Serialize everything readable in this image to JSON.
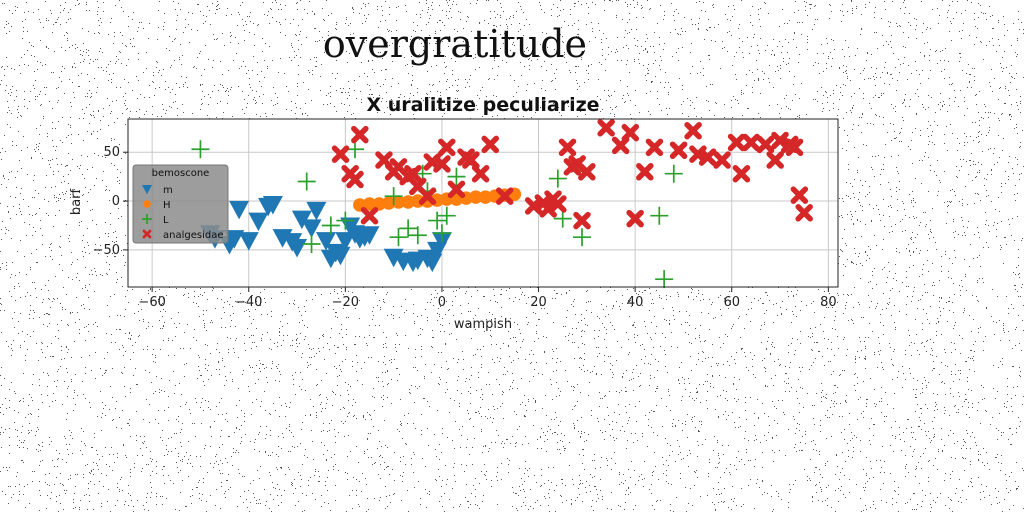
{
  "page_title": "overgratitude",
  "chart_data": {
    "type": "scatter",
    "title": "X uralitize peculiarize",
    "xlabel": "wampish",
    "ylabel": "barf",
    "xlim": [
      -65,
      82
    ],
    "ylim": [
      -88,
      84
    ],
    "xticks": [
      -60,
      -40,
      -20,
      0,
      20,
      40,
      60,
      80
    ],
    "yticks": [
      -50,
      0,
      50
    ],
    "grid": true,
    "legend": {
      "title": "bemoscone",
      "placement": "left"
    },
    "series": [
      {
        "name": "m",
        "marker": "triangle-down",
        "color": "#1f77b4",
        "x": [
          -48,
          -47,
          -44,
          -43,
          -42,
          -40,
          -38,
          -36,
          -35,
          -33,
          -31,
          -30,
          -29,
          -27,
          -26,
          -24,
          -23,
          -22,
          -21,
          -20,
          -19,
          -18,
          -17,
          -16,
          -15,
          -10,
          -8,
          -6,
          -5,
          -3,
          -2,
          -1,
          0
        ],
        "y": [
          -33,
          -38,
          -44,
          -38,
          -8,
          -40,
          -20,
          -5,
          -3,
          -37,
          -41,
          -47,
          -18,
          -27,
          -9,
          -40,
          -58,
          -52,
          -55,
          -40,
          -25,
          -33,
          -38,
          -36,
          -34,
          -57,
          -61,
          -62,
          -60,
          -58,
          -62,
          -50,
          -40
        ]
      },
      {
        "name": "H",
        "marker": "circle",
        "color": "#ff7f0e",
        "x": [
          -17,
          -15,
          -13,
          -11,
          -9,
          -7,
          -5,
          -3,
          -1,
          1,
          3,
          5,
          7,
          9,
          11,
          13,
          15
        ],
        "y": [
          -4,
          -3,
          -3,
          -2,
          -1,
          -1,
          0,
          0,
          1,
          2,
          2,
          3,
          4,
          4,
          5,
          6,
          7
        ]
      },
      {
        "name": "L",
        "marker": "plus",
        "color": "#2ca02c",
        "x": [
          -50,
          -28,
          -27,
          -23,
          -20,
          -18,
          -10,
          -9,
          -7,
          -5,
          -4,
          -3,
          -1,
          0,
          1,
          3,
          23,
          24,
          25,
          29,
          45,
          46,
          48
        ],
        "y": [
          53,
          20,
          -44,
          -25,
          -20,
          53,
          5,
          -37,
          -28,
          -35,
          28,
          10,
          -20,
          -33,
          -15,
          25,
          -5,
          23,
          -18,
          -37,
          -15,
          -80,
          28
        ]
      },
      {
        "name": "analgesidae",
        "marker": "x",
        "color": "#d62728",
        "x": [
          -21,
          -19,
          -18,
          -17,
          -15,
          -12,
          -10,
          -9,
          -7,
          -6,
          -5,
          -3,
          -2,
          0,
          1,
          3,
          5,
          6,
          8,
          10,
          13,
          19,
          21,
          22,
          23,
          24,
          26,
          27,
          28,
          29,
          30,
          34,
          37,
          39,
          40,
          42,
          44,
          49,
          52,
          53,
          55,
          58,
          61,
          62,
          64,
          67,
          69,
          70,
          72,
          73,
          74,
          75
        ],
        "y": [
          48,
          28,
          22,
          68,
          -15,
          42,
          30,
          35,
          25,
          28,
          15,
          5,
          40,
          38,
          55,
          12,
          45,
          42,
          28,
          58,
          5,
          -5,
          -2,
          -8,
          2,
          -3,
          55,
          35,
          38,
          -20,
          30,
          75,
          57,
          70,
          -18,
          30,
          55,
          52,
          72,
          48,
          45,
          42,
          60,
          28,
          60,
          58,
          42,
          62,
          58,
          55,
          6,
          -12
        ]
      }
    ]
  }
}
